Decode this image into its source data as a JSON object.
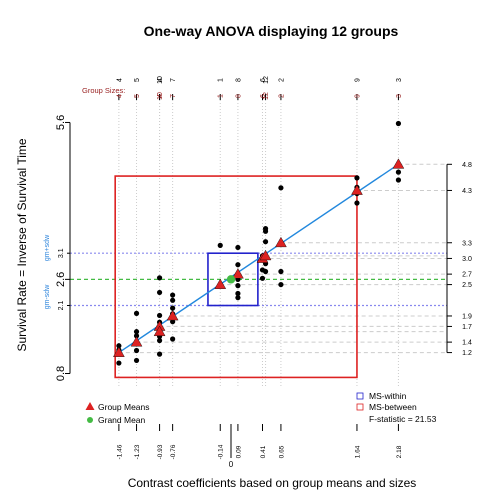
{
  "chart_data": {
    "type": "scatter",
    "title": "One-way ANOVA displaying 12 groups",
    "xlabel": "Contrast coefficients based on group means and sizes",
    "ylabel": "Survival Rate = Inverse of Survival Time",
    "xlim": [
      -1.6,
      2.3
    ],
    "ylim": [
      0.8,
      5.6
    ],
    "group_sizes_label": "Group Sizes:",
    "x_tick_labels": [
      "-1.46",
      "-1.23",
      "-0.93",
      "-0.76",
      "-0.14",
      "0.09",
      "0.41",
      "0.65",
      "1.64",
      "2.18"
    ],
    "x_zero_label": "0",
    "y_tick_labels_left": [
      "0.8",
      "2.6",
      "5.6"
    ],
    "y_tick_labels_right": [
      "1.2",
      "1.4",
      "1.7",
      "1.9",
      "2.5",
      "2.7",
      "3.0",
      "3.3",
      "4.3",
      "4.8"
    ],
    "y_small_labels": [
      "2.1",
      "3.1"
    ],
    "gm_plus_label": "gm+sdw",
    "gm_minus_label": "gm-sdw",
    "grand_mean": {
      "x": 0,
      "y": 2.6
    },
    "sdw_band": [
      2.1,
      3.1
    ],
    "groups": [
      {
        "coef": -1.46,
        "mean": 1.2,
        "size": "4",
        "obs": [
          1.0,
          1.25,
          1.33
        ]
      },
      {
        "coef": -1.23,
        "mean": 1.4,
        "size": "5",
        "obs": [
          1.05,
          1.24,
          1.52,
          1.6,
          1.95
        ]
      },
      {
        "coef": -0.93,
        "mean": 1.7,
        "size": "4",
        "obs": [
          1.17,
          1.53,
          2.35,
          2.63
        ]
      },
      {
        "coef": -0.93,
        "mean": 1.6,
        "size": "10",
        "obs": [
          1.43,
          1.51,
          1.67,
          1.78,
          1.91
        ]
      },
      {
        "coef": -0.76,
        "mean": 1.9,
        "size": "7",
        "obs": [
          1.46,
          1.79,
          1.94,
          2.05,
          2.2,
          2.3
        ]
      },
      {
        "coef": -0.14,
        "mean": 2.5,
        "size": "1",
        "obs": [
          3.25
        ]
      },
      {
        "coef": 0.09,
        "mean": 2.7,
        "size": "8",
        "obs": [
          2.25,
          2.33,
          2.48,
          2.6,
          2.7,
          2.88,
          3.21
        ]
      },
      {
        "coef": 0.41,
        "mean": 3.0,
        "size": "6",
        "obs": [
          2.62,
          2.78,
          3.05
        ]
      },
      {
        "coef": 0.45,
        "mean": 3.05,
        "size": "12",
        "obs": [
          2.75,
          2.9,
          3.05,
          3.32,
          3.52,
          3.57
        ]
      },
      {
        "coef": 0.65,
        "mean": 3.3,
        "size": "2",
        "obs": [
          2.5,
          2.75,
          4.35
        ]
      },
      {
        "coef": 1.64,
        "mean": 4.3,
        "size": "9",
        "obs": [
          4.06,
          4.24,
          4.36,
          4.54
        ]
      },
      {
        "coef": 2.18,
        "mean": 4.8,
        "size": "3",
        "obs": [
          4.5,
          4.65,
          5.58
        ]
      }
    ],
    "legend_left": [
      {
        "label": "Group Means",
        "marker": "triangle",
        "color": "#dd2222"
      },
      {
        "label": "Grand Mean",
        "marker": "circle",
        "color": "#44bb44"
      }
    ],
    "legend_right": [
      {
        "label": "MS-within",
        "marker": "square",
        "color": "#2233cc"
      },
      {
        "label": "MS-between",
        "marker": "square",
        "color": "#dd2222"
      },
      {
        "label": "F-statistic =  21.53",
        "marker": "none",
        "color": "#000000"
      }
    ],
    "colors": {
      "fit_line": "#2288dd",
      "group_mean": "#dd2222",
      "grand_mean": "#44bb44",
      "ms_within": "#2222cc",
      "ms_between": "#dd2222",
      "sdw_lines": "#8888ee",
      "group_size_text": "#992222",
      "guide_lines": "#cccccc",
      "axis_side_label": "#3388dd"
    }
  }
}
